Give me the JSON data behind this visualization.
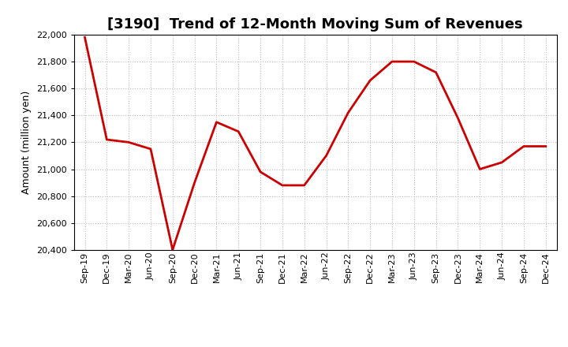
{
  "title": "[3190]  Trend of 12-Month Moving Sum of Revenues",
  "ylabel": "Amount (million yen)",
  "line_color": "#CC0000",
  "background_color": "#FFFFFF",
  "plot_bg_color": "#FFFFFF",
  "grid_color": "#BBBBBB",
  "ylim": [
    20400,
    22000
  ],
  "yticks": [
    20400,
    20600,
    20800,
    21000,
    21200,
    21400,
    21600,
    21800,
    22000
  ],
  "x_labels": [
    "Sep-19",
    "Dec-19",
    "Mar-20",
    "Jun-20",
    "Sep-20",
    "Dec-20",
    "Mar-21",
    "Jun-21",
    "Sep-21",
    "Dec-21",
    "Mar-22",
    "Jun-22",
    "Sep-22",
    "Dec-22",
    "Mar-23",
    "Jun-23",
    "Sep-23",
    "Dec-23",
    "Mar-24",
    "Jun-24",
    "Sep-24",
    "Dec-24"
  ],
  "values": [
    21980,
    21220,
    21200,
    21150,
    20400,
    20900,
    21350,
    21280,
    20980,
    20880,
    20880,
    21100,
    21420,
    21660,
    21800,
    21800,
    21720,
    21380,
    21000,
    21050,
    21170,
    21170
  ],
  "title_fontsize": 13,
  "ylabel_fontsize": 9,
  "tick_fontsize": 8,
  "line_width": 2.0
}
